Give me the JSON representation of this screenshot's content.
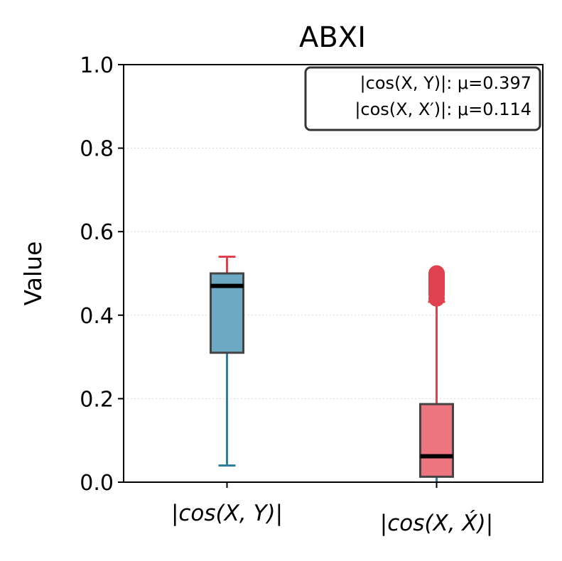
{
  "chart_data": {
    "type": "box",
    "title": "ABXI",
    "ylabel": "Value",
    "xlabel": "",
    "ylim": [
      0,
      1
    ],
    "yticks": [
      0.0,
      0.2,
      0.4,
      0.6,
      0.8,
      1.0
    ],
    "ytick_labels": [
      "0.0",
      "0.2",
      "0.4",
      "0.6",
      "0.8",
      "1.0"
    ],
    "grid": true,
    "legend_box": {
      "placement": "top-right",
      "lines": [
        "|cos(X, Y)|: μ=0.397",
        "|cos(X, X′)|: μ=0.114"
      ]
    },
    "categories": [
      "|cos(X, Y)|",
      "|cos(X, X́)|"
    ],
    "boxes": [
      {
        "category": "|cos(X, Y)|",
        "whisker_low": 0.04,
        "q1": 0.31,
        "median": 0.47,
        "q3": 0.5,
        "whisker_high": 0.54,
        "fliers": [],
        "box_color": "#4a93b4",
        "whisker_low_color": "#2f7f9e",
        "whisker_high_color": "#e0414f"
      },
      {
        "category": "|cos(X, X́)|",
        "whisker_low": 0.0,
        "q1": 0.013,
        "median": 0.062,
        "q3": 0.187,
        "whisker_high": 0.432,
        "fliers": [
          0.44,
          0.45,
          0.455,
          0.46,
          0.465,
          0.47,
          0.475,
          0.48,
          0.485,
          0.49,
          0.495,
          0.5
        ],
        "box_color": "#e9525f",
        "whisker_low_color": "#2f7f9e",
        "whisker_high_color": "#e0414f"
      }
    ]
  }
}
